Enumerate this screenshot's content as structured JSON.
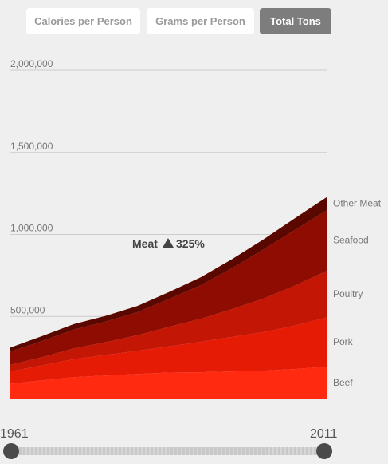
{
  "tabs": [
    {
      "label": "Calories per Person",
      "active": false
    },
    {
      "label": "Grams per Person",
      "active": false
    },
    {
      "label": "Total Tons",
      "active": true
    }
  ],
  "annotation": {
    "label": "Meat",
    "change": "325%"
  },
  "timeline": {
    "start_label": "1961",
    "end_label": "2011"
  },
  "chart_data": {
    "type": "area",
    "stacked": true,
    "x": [
      1961,
      1966,
      1971,
      1976,
      1981,
      1986,
      1991,
      1996,
      2001,
      2006,
      2011
    ],
    "ylim": [
      0,
      2000000
    ],
    "yticks": [
      0,
      500000,
      1000000,
      1500000,
      2000000
    ],
    "ytick_labels": [
      "0",
      "500,000",
      "1,000,000",
      "1,500,000",
      "2,000,000"
    ],
    "grid": true,
    "series": [
      {
        "name": "Beef",
        "color": "#ff2a0f",
        "values": [
          90000,
          110000,
          130000,
          140000,
          150000,
          158000,
          160000,
          165000,
          170000,
          180000,
          195000
        ]
      },
      {
        "name": "Pork",
        "color": "#e51b06",
        "values": [
          75000,
          92000,
          110000,
          125000,
          140000,
          160000,
          185000,
          210000,
          235000,
          265000,
          300000
        ]
      },
      {
        "name": "Poultry",
        "color": "#c41605",
        "values": [
          40000,
          50000,
          65000,
          78000,
          95000,
          118000,
          140000,
          170000,
          205000,
          245000,
          285000
        ]
      },
      {
        "name": "Seafood",
        "color": "#8e0c02",
        "values": [
          80000,
          98000,
          115000,
          125000,
          140000,
          170000,
          205000,
          250000,
          300000,
          340000,
          370000
        ]
      },
      {
        "name": "Other Meat",
        "color": "#5a0700",
        "values": [
          25000,
          30000,
          33000,
          35000,
          38000,
          42000,
          48000,
          55000,
          62000,
          72000,
          80000
        ]
      }
    ]
  }
}
